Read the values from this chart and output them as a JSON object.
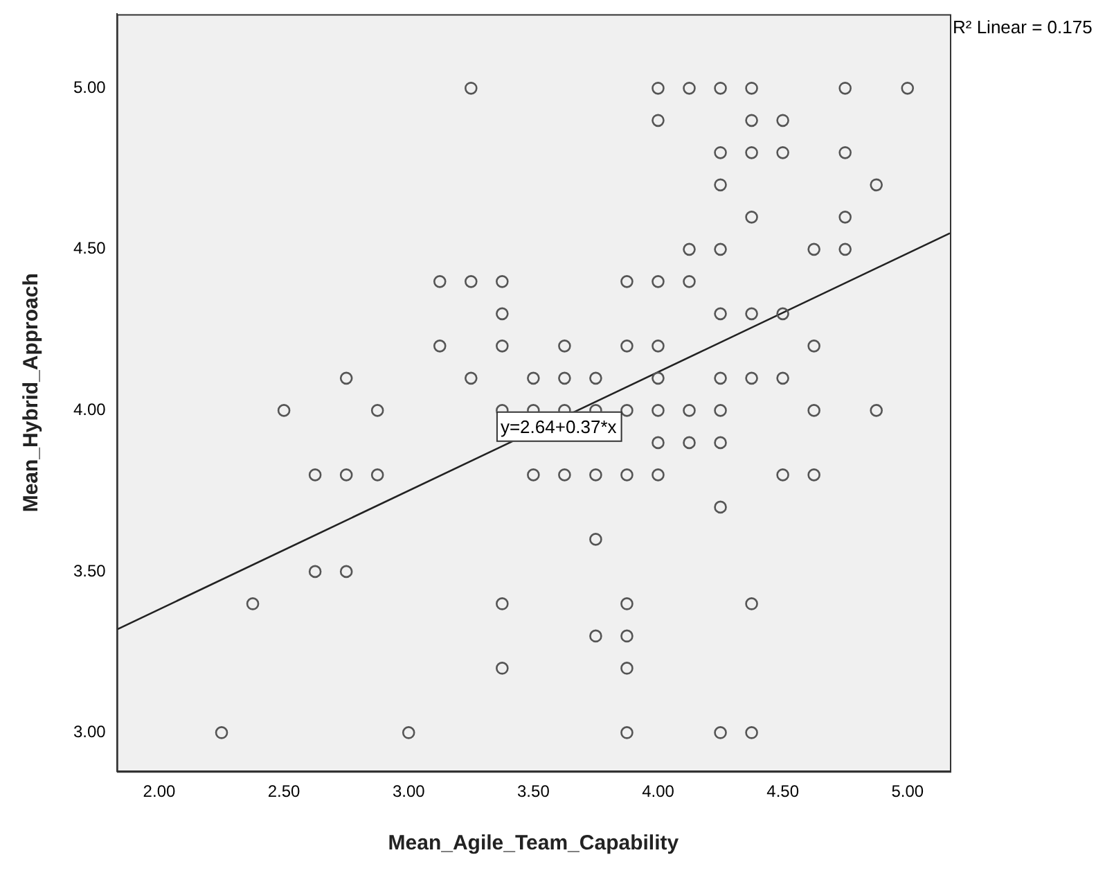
{
  "chart_data": {
    "type": "scatter",
    "xlabel": "Mean_Agile_Team_Capability",
    "ylabel": "Mean_Hybrid_Approach",
    "xlim": [
      1.83,
      5.17
    ],
    "ylim": [
      2.88,
      5.23
    ],
    "xticks": [
      {
        "value": 2,
        "label": "2.00"
      },
      {
        "value": 2.5,
        "label": "2.50"
      },
      {
        "value": 3,
        "label": "3.00"
      },
      {
        "value": 3.5,
        "label": "3.50"
      },
      {
        "value": 4,
        "label": "4.00"
      },
      {
        "value": 4.5,
        "label": "4.50"
      },
      {
        "value": 5,
        "label": "5.00"
      }
    ],
    "yticks": [
      {
        "value": 3,
        "label": "3.00"
      },
      {
        "value": 3.5,
        "label": "3.50"
      },
      {
        "value": 4,
        "label": "4.00"
      },
      {
        "value": 4.5,
        "label": "4.50"
      },
      {
        "value": 5,
        "label": "5.00"
      }
    ],
    "grid": false,
    "legend": false,
    "series": [
      {
        "marker": "circle",
        "color": "#555555",
        "x": [
          3.25,
          4.0,
          4.125,
          4.25,
          4.375,
          4.75,
          5.0,
          4.0,
          4.375,
          4.5,
          4.25,
          4.375,
          4.5,
          4.75,
          4.25,
          4.875,
          4.375,
          4.75,
          4.125,
          4.25,
          4.625,
          4.75,
          3.125,
          3.25,
          3.375,
          3.875,
          4.0,
          4.125,
          3.375,
          4.25,
          4.375,
          4.5,
          3.125,
          3.375,
          3.625,
          3.875,
          4.0,
          4.625,
          2.75,
          3.25,
          3.5,
          3.625,
          3.75,
          4.0,
          4.25,
          4.375,
          4.5,
          2.5,
          2.875,
          3.375,
          3.5,
          3.625,
          3.75,
          3.875,
          4.0,
          4.125,
          4.25,
          4.625,
          4.875,
          4.0,
          4.125,
          4.25,
          2.625,
          2.75,
          2.875,
          3.5,
          3.625,
          3.75,
          3.875,
          4.0,
          4.5,
          4.625,
          4.25,
          3.75,
          2.625,
          2.75,
          2.375,
          3.375,
          3.875,
          4.375,
          3.75,
          3.875,
          3.375,
          3.875,
          2.25,
          3.0,
          3.875,
          4.25,
          4.375
        ],
        "values": [
          5.0,
          5.0,
          5.0,
          5.0,
          5.0,
          5.0,
          5.0,
          4.9,
          4.9,
          4.9,
          4.8,
          4.8,
          4.8,
          4.8,
          4.7,
          4.7,
          4.6,
          4.6,
          4.5,
          4.5,
          4.5,
          4.5,
          4.4,
          4.4,
          4.4,
          4.4,
          4.4,
          4.4,
          4.3,
          4.3,
          4.3,
          4.3,
          4.2,
          4.2,
          4.2,
          4.2,
          4.2,
          4.2,
          4.1,
          4.1,
          4.1,
          4.1,
          4.1,
          4.1,
          4.1,
          4.1,
          4.1,
          4.0,
          4.0,
          4.0,
          4.0,
          4.0,
          4.0,
          4.0,
          4.0,
          4.0,
          4.0,
          4.0,
          4.0,
          3.9,
          3.9,
          3.9,
          3.8,
          3.8,
          3.8,
          3.8,
          3.8,
          3.8,
          3.8,
          3.8,
          3.8,
          3.8,
          3.7,
          3.6,
          3.5,
          3.5,
          3.4,
          3.4,
          3.4,
          3.4,
          3.3,
          3.3,
          3.2,
          3.2,
          3.0,
          3.0,
          3.0,
          3.0,
          3.0
        ]
      },
      {
        "type": "line",
        "color": "#222222",
        "x": [
          1.83,
          5.17
        ],
        "values": [
          3.32,
          4.55
        ]
      }
    ],
    "annotations": [
      "y=2.64+0.37*x",
      "R² Linear = 0.175"
    ]
  }
}
